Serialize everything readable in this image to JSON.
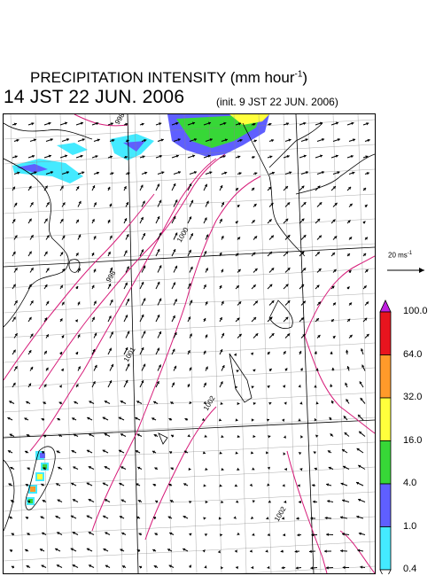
{
  "header": {
    "title": "PRECIPITATION INTENSITY (mm hour",
    "title_exponent": "-1",
    "title_suffix": ")",
    "valid_time": "14 JST 22 JUN. 2006",
    "init_time": "(init. 9 JST 22 JUN. 2006)"
  },
  "map": {
    "isobar_labels": [
      "998",
      "1000",
      "998",
      "1001",
      "1002",
      "1002"
    ],
    "isobar_color": "#d61a78",
    "wind_arrow_color": "#000000",
    "coastline_color": "#000000",
    "grid_color": "#888888"
  },
  "reference_vector": {
    "label": "20 ms",
    "exponent": "-1"
  },
  "colorbar": {
    "labels": [
      "100.0",
      "64.0",
      "32.0",
      "16.0",
      "4.0",
      "1.0",
      "0.4"
    ],
    "colors": [
      "#e8141e",
      "#ff9a2a",
      "#ffff3c",
      "#37d737",
      "#5f5fff",
      "#44eaff"
    ],
    "over_color": "#c020e0",
    "under_color": "#ffffff"
  }
}
